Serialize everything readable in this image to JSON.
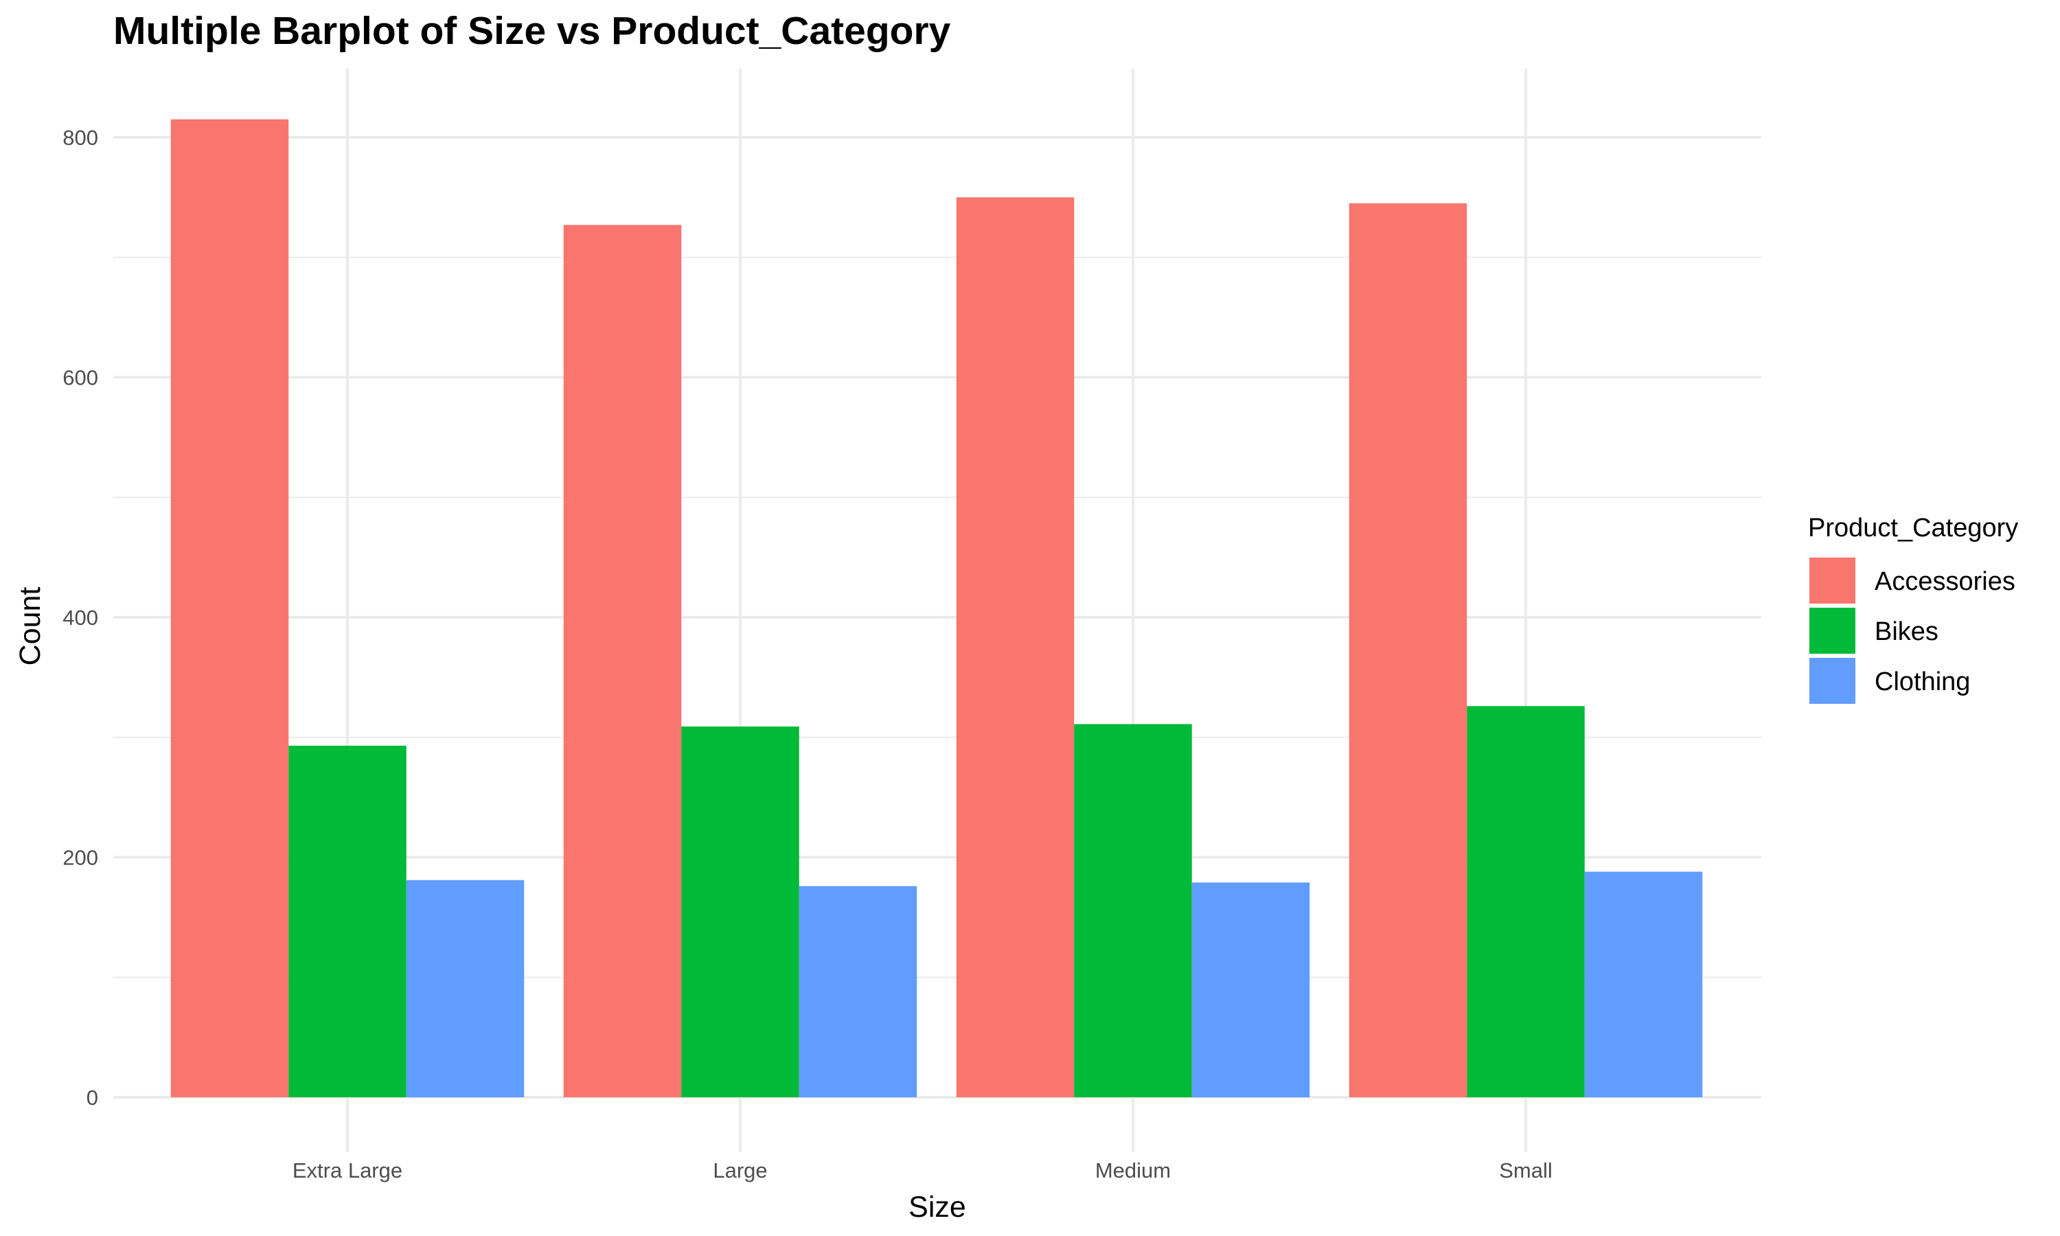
{
  "chart_data": {
    "type": "bar",
    "title": "Multiple Barplot of Size vs Product_Category",
    "xlabel": "Size",
    "ylabel": "Count",
    "categories": [
      "Extra Large",
      "Large",
      "Medium",
      "Small"
    ],
    "series": [
      {
        "name": "Accessories",
        "color": "#F8766D",
        "values": [
          815,
          727,
          750,
          745
        ]
      },
      {
        "name": "Bikes",
        "color": "#00BA38",
        "values": [
          293,
          309,
          311,
          326
        ]
      },
      {
        "name": "Clothing",
        "color": "#619CFF",
        "values": [
          181,
          176,
          179,
          188
        ]
      }
    ],
    "ylim": [
      0,
      860
    ],
    "yticks": [
      0,
      200,
      400,
      600,
      800
    ],
    "legend": {
      "title": "Product_Category",
      "position": "right"
    },
    "grid": true
  }
}
